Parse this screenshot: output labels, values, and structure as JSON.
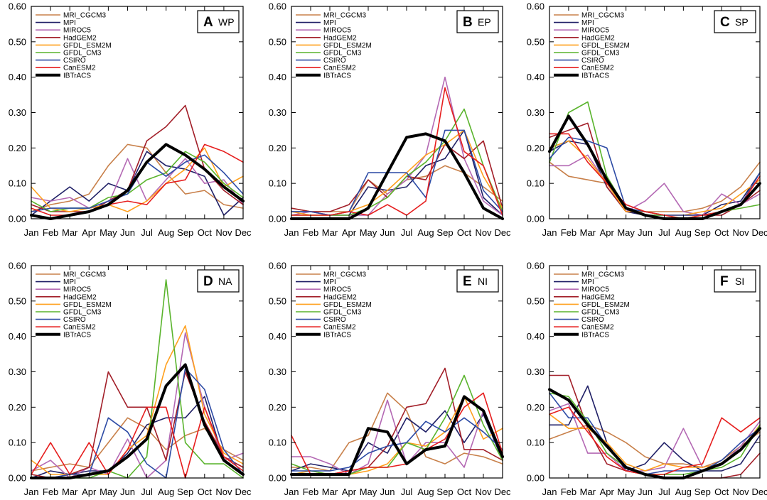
{
  "series_meta": [
    {
      "name": "MRI_CGCM3",
      "color": "#c8804a"
    },
    {
      "name": "MPI",
      "color": "#1f1f66"
    },
    {
      "name": "MIROC5",
      "color": "#b469b4"
    },
    {
      "name": "HadGEM2",
      "color": "#a21e28"
    },
    {
      "name": "GFDL_ESM2M",
      "color": "#ffa01e"
    },
    {
      "name": "GFDL_CM3",
      "color": "#5ab42d"
    },
    {
      "name": "CSIRO",
      "color": "#2d4ba5"
    },
    {
      "name": "CanESM2",
      "color": "#e61e1e"
    },
    {
      "name": "IBTrACS",
      "color": "#000000"
    }
  ],
  "chart_data": [
    {
      "type": "line",
      "letter": "A",
      "region": "WP",
      "categories": [
        "Jan",
        "Feb",
        "Mar",
        "Apr",
        "May",
        "Jun",
        "Jul",
        "Aug",
        "Sep",
        "Oct",
        "Nov",
        "Dec"
      ],
      "yticks": [
        "0.00",
        "0.10",
        "0.20",
        "0.30",
        "0.40",
        "0.50",
        "0.60"
      ],
      "ylim": [
        0,
        0.6
      ],
      "series": [
        {
          "name": "MRI_CGCM3",
          "values": [
            0.02,
            0.04,
            0.05,
            0.07,
            0.15,
            0.21,
            0.2,
            0.13,
            0.07,
            0.08,
            0.04,
            0.03
          ]
        },
        {
          "name": "MPI",
          "values": [
            0.01,
            0.05,
            0.09,
            0.05,
            0.1,
            0.08,
            0.19,
            0.15,
            0.14,
            0.12,
            0.01,
            0.06
          ]
        },
        {
          "name": "MIROC5",
          "values": [
            0.06,
            0.05,
            0.06,
            0.03,
            0.04,
            0.17,
            0.05,
            0.11,
            0.17,
            0.1,
            0.11,
            0.04
          ]
        },
        {
          "name": "HadGEM2",
          "values": [
            0.04,
            0.02,
            0.02,
            0.02,
            0.05,
            0.08,
            0.22,
            0.26,
            0.32,
            0.14,
            0.08,
            0.04
          ]
        },
        {
          "name": "GFDL_ESM2M",
          "values": [
            0.09,
            0.03,
            0.02,
            0.03,
            0.04,
            0.02,
            0.05,
            0.1,
            0.14,
            0.2,
            0.09,
            0.12
          ]
        },
        {
          "name": "GFDL_CM3",
          "values": [
            0.05,
            0.02,
            0.03,
            0.03,
            0.06,
            0.07,
            0.11,
            0.13,
            0.19,
            0.16,
            0.1,
            0.06
          ]
        },
        {
          "name": "CSIRO",
          "values": [
            0.02,
            0.03,
            0.03,
            0.03,
            0.05,
            0.07,
            0.16,
            0.12,
            0.16,
            0.18,
            0.13,
            0.07
          ]
        },
        {
          "name": "CanESM2",
          "values": [
            0.03,
            0.01,
            0.01,
            0.02,
            0.04,
            0.05,
            0.04,
            0.1,
            0.11,
            0.21,
            0.19,
            0.16
          ]
        },
        {
          "name": "IBTrACS",
          "values": [
            0.01,
            0.0,
            0.01,
            0.02,
            0.04,
            0.08,
            0.16,
            0.21,
            0.18,
            0.14,
            0.09,
            0.05
          ]
        }
      ]
    },
    {
      "type": "line",
      "letter": "B",
      "region": "EP",
      "categories": [
        "Jan",
        "Feb",
        "Mar",
        "Apr",
        "May",
        "Jun",
        "Jul",
        "Aug",
        "Sep",
        "Oct",
        "Nov",
        "Dec"
      ],
      "yticks": [
        "0.00",
        "0.10",
        "0.20",
        "0.30",
        "0.40",
        "0.50",
        "0.60"
      ],
      "ylim": [
        0,
        0.6
      ],
      "series": [
        {
          "name": "MRI_CGCM3",
          "values": [
            0.03,
            0.02,
            0.02,
            0.02,
            0.11,
            0.07,
            0.11,
            0.12,
            0.15,
            0.13,
            0.09,
            0.05
          ]
        },
        {
          "name": "MPI",
          "values": [
            0.02,
            0.02,
            0.01,
            0.01,
            0.09,
            0.08,
            0.09,
            0.15,
            0.17,
            0.25,
            0.06,
            0.01
          ]
        },
        {
          "name": "MIROC5",
          "values": [
            0.01,
            0.02,
            0.01,
            0.01,
            0.01,
            0.07,
            0.11,
            0.18,
            0.4,
            0.17,
            0.05,
            0.01
          ]
        },
        {
          "name": "HadGEM2",
          "values": [
            0.03,
            0.02,
            0.02,
            0.04,
            0.11,
            0.06,
            0.12,
            0.11,
            0.21,
            0.17,
            0.22,
            0.03
          ]
        },
        {
          "name": "GFDL_ESM2M",
          "values": [
            0.02,
            0.01,
            0.01,
            0.02,
            0.04,
            0.08,
            0.13,
            0.18,
            0.21,
            0.25,
            0.12,
            0.03
          ]
        },
        {
          "name": "GFDL_CM3",
          "values": [
            0.01,
            0.01,
            0.01,
            0.01,
            0.03,
            0.06,
            0.12,
            0.16,
            0.22,
            0.31,
            0.15,
            0.02
          ]
        },
        {
          "name": "CSIRO",
          "values": [
            0.02,
            0.02,
            0.01,
            0.02,
            0.13,
            0.13,
            0.13,
            0.06,
            0.25,
            0.25,
            0.08,
            0.02
          ]
        },
        {
          "name": "CanESM2",
          "values": [
            0.01,
            0.01,
            0.01,
            0.02,
            0.01,
            0.04,
            0.01,
            0.05,
            0.37,
            0.19,
            0.15,
            0.01
          ]
        },
        {
          "name": "IBTrACS",
          "values": [
            0.0,
            0.0,
            0.0,
            0.0,
            0.03,
            0.13,
            0.23,
            0.24,
            0.22,
            0.13,
            0.03,
            0.0
          ]
        }
      ]
    },
    {
      "type": "line",
      "letter": "C",
      "region": "SP",
      "categories": [
        "Jan",
        "Feb",
        "Mar",
        "Apr",
        "May",
        "Jun",
        "Jul",
        "Aug",
        "Sep",
        "Oct",
        "Nov",
        "Dec"
      ],
      "yticks": [
        "0.00",
        "0.10",
        "0.20",
        "0.30",
        "0.40",
        "0.50",
        "0.60"
      ],
      "ylim": [
        0,
        0.6
      ],
      "series": [
        {
          "name": "MRI_CGCM3",
          "values": [
            0.16,
            0.12,
            0.11,
            0.1,
            0.04,
            0.02,
            0.02,
            0.02,
            0.03,
            0.05,
            0.09,
            0.16
          ]
        },
        {
          "name": "MPI",
          "values": [
            0.19,
            0.22,
            0.21,
            0.09,
            0.02,
            0.01,
            0.01,
            0.0,
            0.01,
            0.04,
            0.05,
            0.13
          ]
        },
        {
          "name": "MIROC5",
          "values": [
            0.15,
            0.15,
            0.18,
            0.1,
            0.02,
            0.05,
            0.1,
            0.02,
            0.01,
            0.07,
            0.04,
            0.07
          ]
        },
        {
          "name": "HadGEM2",
          "values": [
            0.23,
            0.25,
            0.27,
            0.09,
            0.02,
            0.02,
            0.01,
            0.01,
            0.01,
            0.01,
            0.04,
            0.08
          ]
        },
        {
          "name": "GFDL_ESM2M",
          "values": [
            0.2,
            0.22,
            0.17,
            0.1,
            0.02,
            0.02,
            0.01,
            0.01,
            0.02,
            0.03,
            0.07,
            0.11
          ]
        },
        {
          "name": "GFDL_CM3",
          "values": [
            0.16,
            0.3,
            0.33,
            0.12,
            0.03,
            0.01,
            0.01,
            0.0,
            0.01,
            0.02,
            0.03,
            0.04
          ]
        },
        {
          "name": "CSIRO",
          "values": [
            0.17,
            0.23,
            0.22,
            0.2,
            0.03,
            0.02,
            0.01,
            0.01,
            0.01,
            0.02,
            0.04,
            0.13
          ]
        },
        {
          "name": "CanESM2",
          "values": [
            0.24,
            0.24,
            0.16,
            0.1,
            0.04,
            0.02,
            0.01,
            0.0,
            0.01,
            0.02,
            0.04,
            0.12
          ]
        },
        {
          "name": "IBTrACS",
          "values": [
            0.19,
            0.29,
            0.21,
            0.11,
            0.03,
            0.01,
            0.0,
            0.0,
            0.0,
            0.02,
            0.04,
            0.1
          ]
        }
      ]
    },
    {
      "type": "line",
      "letter": "D",
      "region": "NA",
      "categories": [
        "Jan",
        "Feb",
        "Mar",
        "Apr",
        "May",
        "Jun",
        "Jul",
        "Aug",
        "Sep",
        "Oct",
        "Nov",
        "Dec"
      ],
      "yticks": [
        "0.00",
        "0.10",
        "0.20",
        "0.30",
        "0.40",
        "0.50",
        "0.60"
      ],
      "ylim": [
        0,
        0.6
      ],
      "series": [
        {
          "name": "MRI_CGCM3",
          "values": [
            0.02,
            0.03,
            0.04,
            0.03,
            0.1,
            0.17,
            0.14,
            0.08,
            0.12,
            0.14,
            0.08,
            0.05
          ]
        },
        {
          "name": "MPI",
          "values": [
            0.0,
            0.02,
            0.01,
            0.02,
            0.02,
            0.07,
            0.15,
            0.17,
            0.17,
            0.23,
            0.05,
            0.01
          ]
        },
        {
          "name": "MIROC5",
          "values": [
            0.02,
            0.05,
            0.0,
            0.03,
            0.01,
            0.11,
            0.0,
            0.05,
            0.41,
            0.2,
            0.05,
            0.07
          ]
        },
        {
          "name": "HadGEM2",
          "values": [
            0.01,
            0.0,
            0.01,
            0.03,
            0.3,
            0.2,
            0.2,
            0.05,
            0.3,
            0.16,
            0.06,
            0.03
          ]
        },
        {
          "name": "GFDL_ESM2M",
          "values": [
            0.05,
            0.01,
            0.01,
            0.01,
            0.01,
            0.08,
            0.12,
            0.32,
            0.43,
            0.18,
            0.07,
            0.04
          ]
        },
        {
          "name": "GFDL_CM3",
          "values": [
            0.0,
            0.0,
            0.0,
            0.0,
            0.02,
            0.0,
            0.06,
            0.56,
            0.1,
            0.04,
            0.04,
            0.0
          ]
        },
        {
          "name": "CSIRO",
          "values": [
            0.0,
            0.0,
            0.01,
            0.01,
            0.17,
            0.13,
            0.04,
            0.0,
            0.31,
            0.25,
            0.08,
            0.01
          ]
        },
        {
          "name": "CanESM2",
          "values": [
            0.01,
            0.1,
            0.01,
            0.1,
            0.01,
            0.08,
            0.2,
            0.2,
            0.0,
            0.2,
            0.06,
            0.02
          ]
        },
        {
          "name": "IBTrACS",
          "values": [
            0.0,
            0.0,
            0.0,
            0.01,
            0.02,
            0.06,
            0.11,
            0.26,
            0.32,
            0.15,
            0.05,
            0.01
          ]
        }
      ]
    },
    {
      "type": "line",
      "letter": "E",
      "region": "NI",
      "categories": [
        "Jan",
        "Feb",
        "Mar",
        "Apr",
        "May",
        "Jun",
        "Jul",
        "Aug",
        "Sep",
        "Oct",
        "Nov",
        "Dec"
      ],
      "yticks": [
        "0.00",
        "0.10",
        "0.20",
        "0.30",
        "0.40",
        "0.50",
        "0.60"
      ],
      "ylim": [
        0,
        0.6
      ],
      "series": [
        {
          "name": "MRI_CGCM3",
          "values": [
            0.03,
            0.03,
            0.02,
            0.1,
            0.12,
            0.24,
            0.19,
            0.06,
            0.04,
            0.07,
            0.06,
            0.04
          ]
        },
        {
          "name": "MPI",
          "values": [
            0.02,
            0.04,
            0.03,
            0.02,
            0.1,
            0.07,
            0.17,
            0.13,
            0.19,
            0.1,
            0.18,
            0.05
          ]
        },
        {
          "name": "MIROC5",
          "values": [
            0.06,
            0.06,
            0.04,
            0.01,
            0.04,
            0.22,
            0.04,
            0.1,
            0.1,
            0.03,
            0.19,
            0.06
          ]
        },
        {
          "name": "HadGEM2",
          "values": [
            0.01,
            0.01,
            0.01,
            0.02,
            0.03,
            0.09,
            0.2,
            0.21,
            0.31,
            0.08,
            0.08,
            0.05
          ]
        },
        {
          "name": "GFDL_ESM2M",
          "values": [
            0.01,
            0.02,
            0.01,
            0.01,
            0.02,
            0.04,
            0.1,
            0.09,
            0.13,
            0.23,
            0.11,
            0.14
          ]
        },
        {
          "name": "GFDL_CM3",
          "values": [
            0.04,
            0.02,
            0.01,
            0.01,
            0.03,
            0.03,
            0.1,
            0.08,
            0.17,
            0.29,
            0.15,
            0.05
          ]
        },
        {
          "name": "CSIRO",
          "values": [
            0.02,
            0.02,
            0.02,
            0.03,
            0.07,
            0.09,
            0.1,
            0.16,
            0.13,
            0.17,
            0.13,
            0.08
          ]
        },
        {
          "name": "CanESM2",
          "values": [
            0.12,
            0.01,
            0.01,
            0.02,
            0.03,
            0.03,
            0.04,
            0.08,
            0.11,
            0.2,
            0.24,
            0.07
          ]
        },
        {
          "name": "IBTrACS",
          "values": [
            0.01,
            0.01,
            0.01,
            0.01,
            0.14,
            0.13,
            0.04,
            0.08,
            0.09,
            0.23,
            0.19,
            0.06
          ]
        }
      ]
    },
    {
      "type": "line",
      "letter": "F",
      "region": "SI",
      "categories": [
        "Jan",
        "Feb",
        "Mar",
        "Apr",
        "May",
        "Jun",
        "Jul",
        "Aug",
        "Sep",
        "Oct",
        "Nov",
        "Dec"
      ],
      "yticks": [
        "0.00",
        "0.10",
        "0.20",
        "0.30",
        "0.40",
        "0.50",
        "0.60"
      ],
      "ylim": [
        0,
        0.6
      ],
      "series": [
        {
          "name": "MRI_CGCM3",
          "values": [
            0.11,
            0.13,
            0.15,
            0.13,
            0.1,
            0.06,
            0.04,
            0.04,
            0.03,
            0.05,
            0.09,
            0.13
          ]
        },
        {
          "name": "MPI",
          "values": [
            0.15,
            0.15,
            0.26,
            0.1,
            0.02,
            0.04,
            0.1,
            0.05,
            0.02,
            0.02,
            0.04,
            0.12
          ]
        },
        {
          "name": "MIROC5",
          "values": [
            0.19,
            0.21,
            0.07,
            0.07,
            0.02,
            0.02,
            0.03,
            0.14,
            0.03,
            0.04,
            0.09,
            0.16
          ]
        },
        {
          "name": "HadGEM2",
          "values": [
            0.29,
            0.29,
            0.14,
            0.04,
            0.02,
            0.01,
            0.0,
            0.0,
            0.0,
            0.0,
            0.01,
            0.07
          ]
        },
        {
          "name": "GFDL_ESM2M",
          "values": [
            0.18,
            0.14,
            0.14,
            0.1,
            0.04,
            0.02,
            0.04,
            0.03,
            0.03,
            0.04,
            0.08,
            0.15
          ]
        },
        {
          "name": "GFDL_CM3",
          "values": [
            0.24,
            0.23,
            0.16,
            0.07,
            0.03,
            0.01,
            0.01,
            0.01,
            0.02,
            0.03,
            0.06,
            0.15
          ]
        },
        {
          "name": "CSIRO",
          "values": [
            0.24,
            0.17,
            0.17,
            0.09,
            0.03,
            0.01,
            0.02,
            0.02,
            0.02,
            0.05,
            0.1,
            0.14
          ]
        },
        {
          "name": "CanESM2",
          "values": [
            0.18,
            0.2,
            0.13,
            0.06,
            0.02,
            0.01,
            0.01,
            0.03,
            0.04,
            0.17,
            0.13,
            0.17
          ]
        },
        {
          "name": "IBTrACS",
          "values": [
            0.25,
            0.22,
            0.15,
            0.09,
            0.03,
            0.01,
            0.0,
            0.0,
            0.02,
            0.04,
            0.08,
            0.14
          ]
        }
      ]
    }
  ]
}
